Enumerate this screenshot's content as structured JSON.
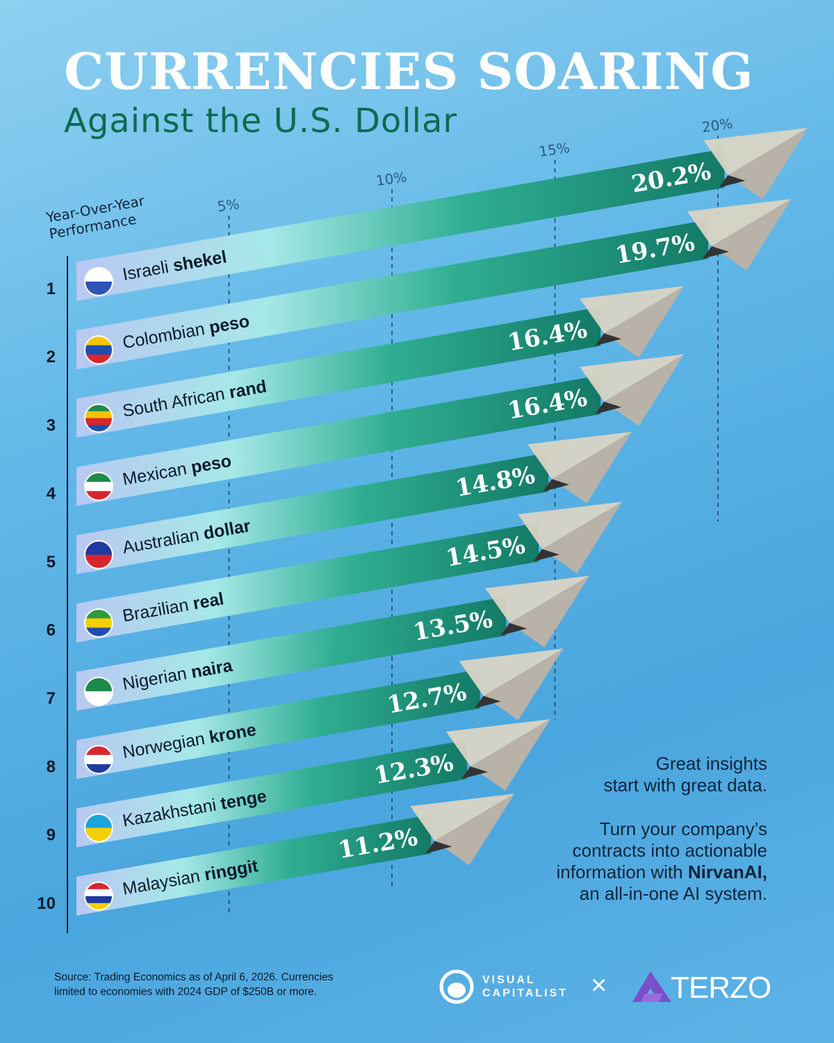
{
  "title": "CURRENCIES SOARING",
  "subtitle": "Against the U.S. Dollar",
  "chart_data": {
    "type": "bar",
    "orientation": "horizontal",
    "axis_title": [
      "Year-Over-Year",
      "Performance"
    ],
    "xticks": [
      5,
      10,
      15,
      20
    ],
    "xtick_labels": [
      "5%",
      "10%",
      "15%",
      "20%"
    ],
    "xlim": [
      0,
      21
    ],
    "grid": "dashed vertical",
    "categories": [
      {
        "rank": "1",
        "regular": "Israeli ",
        "bold": "shekel",
        "flag": "israel"
      },
      {
        "rank": "2",
        "regular": "Colombian ",
        "bold": "peso",
        "flag": "colombia"
      },
      {
        "rank": "3",
        "regular": "South African ",
        "bold": "rand",
        "flag": "south-africa"
      },
      {
        "rank": "4",
        "regular": "Mexican ",
        "bold": "peso",
        "flag": "mexico"
      },
      {
        "rank": "5",
        "regular": "Australian ",
        "bold": "dollar",
        "flag": "australia"
      },
      {
        "rank": "6",
        "regular": "Brazilian ",
        "bold": "real",
        "flag": "brazil"
      },
      {
        "rank": "7",
        "regular": "Nigerian ",
        "bold": "naira",
        "flag": "nigeria"
      },
      {
        "rank": "8",
        "regular": "Norwegian ",
        "bold": "krone",
        "flag": "norway"
      },
      {
        "rank": "9",
        "regular": "Kazakhstani ",
        "bold": "tenge",
        "flag": "kazakhstan"
      },
      {
        "rank": "10",
        "regular": "Malaysian ",
        "bold": "ringgit",
        "flag": "malaysia"
      }
    ],
    "values": [
      20.2,
      19.7,
      16.4,
      16.4,
      14.8,
      14.5,
      13.5,
      12.7,
      12.3,
      11.2
    ],
    "value_labels": [
      "20.2%",
      "19.7%",
      "16.4%",
      "16.4%",
      "14.8%",
      "14.5%",
      "13.5%",
      "12.7%",
      "12.3%",
      "11.2%"
    ],
    "colors": {
      "bar_start": "#b9c8f2",
      "bar_mid": "#a6e8e8",
      "bar_end": "#137a66"
    }
  },
  "promo": {
    "line1": "Great insights",
    "line2": "start with great data.",
    "line3": "Turn your company’s",
    "line4": "contracts into actionable",
    "line5a": "information with ",
    "line5b": "NirvanAI,",
    "line6": "an all-in-one AI system."
  },
  "source": {
    "line1": "Source: Trading Economics as of April 6, 2026. Currencies",
    "line2": "limited to economies with 2024 GDP of $250B or more."
  },
  "logos": {
    "vc_top": "VISUAL",
    "vc_bottom": "CAPITALIST",
    "times": "×",
    "terzo": "TERZO"
  }
}
